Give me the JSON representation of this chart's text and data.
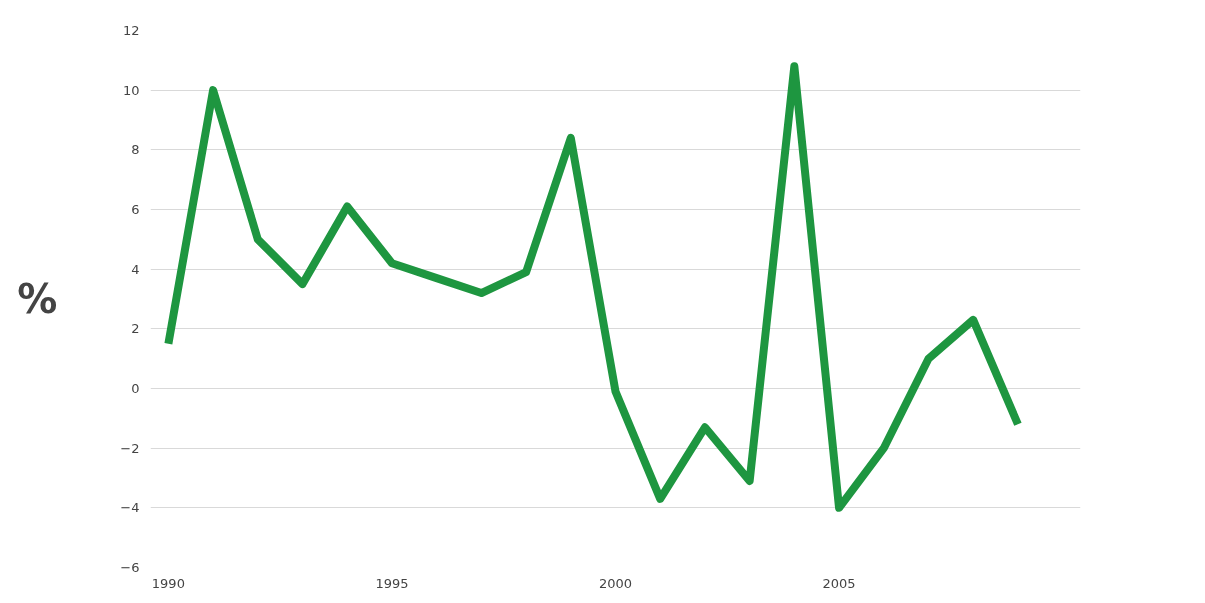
{
  "chart_data": {
    "type": "line",
    "ylabel": "%",
    "x": [
      1990,
      1991,
      1992,
      1993,
      1994,
      1995,
      1996,
      1997,
      1998,
      1999,
      2000,
      2001,
      2002,
      2003,
      2004,
      2005,
      2006,
      2007,
      2008,
      2009
    ],
    "series": [
      {
        "color": "#1e9640",
        "values": [
          1.5,
          10.0,
          5.0,
          3.5,
          6.1,
          4.2,
          3.7,
          3.2,
          3.9,
          8.4,
          -0.1,
          -3.7,
          -1.3,
          -3.1,
          10.8,
          -4.0,
          -2.0,
          1.0,
          2.3,
          -1.2
        ]
      }
    ],
    "xlim": [
      1989.6,
      2010.4
    ],
    "xticks": [
      1990,
      1995,
      2000,
      2005
    ],
    "ylim": [
      -6,
      12
    ],
    "yticks": [
      -6,
      -4,
      -2,
      0,
      2,
      4,
      6,
      8,
      10,
      12
    ],
    "grid": "y",
    "marker": "none",
    "line_style": "solid"
  }
}
